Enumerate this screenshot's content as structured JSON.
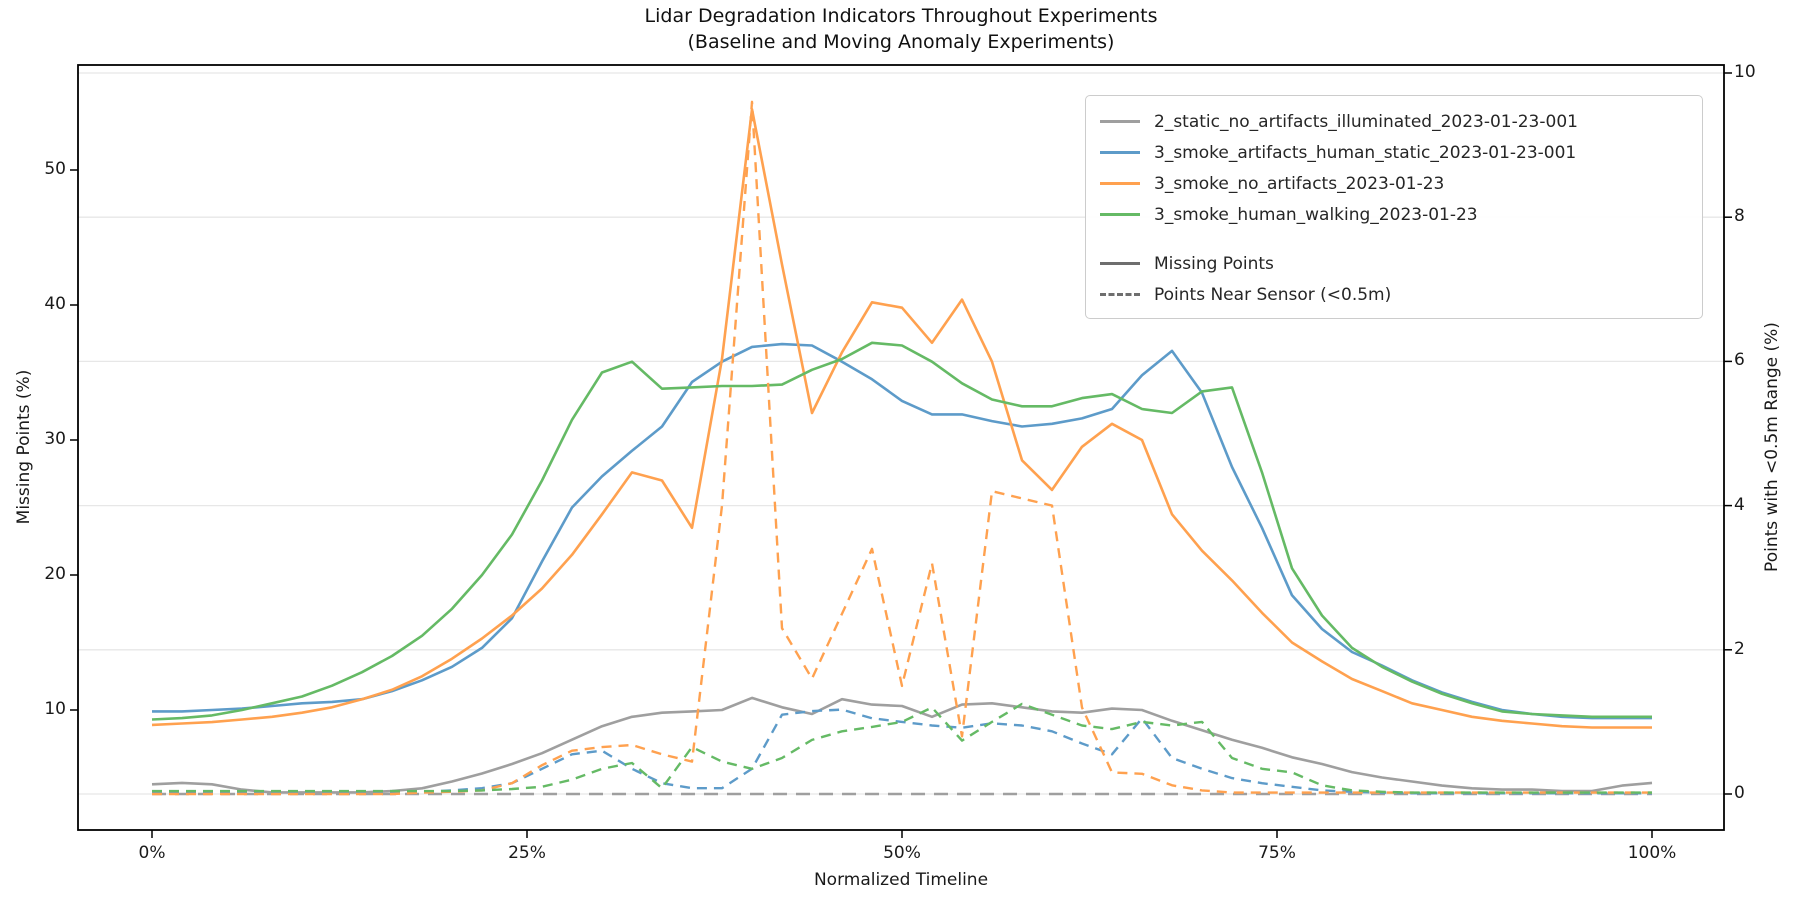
{
  "title": {
    "line1": "Lidar Degradation Indicators Throughout Experiments",
    "line2": "(Baseline and Moving Anomaly Experiments)"
  },
  "axes": {
    "x": {
      "label": "Normalized Timeline",
      "ticks": [
        "0%",
        "25%",
        "50%",
        "75%",
        "100%"
      ]
    },
    "y_left": {
      "label": "Missing Points (%)",
      "ticks": [
        "10",
        "20",
        "30",
        "40",
        "50"
      ]
    },
    "y_right": {
      "label": "Points with <0.5m Range (%)",
      "ticks": [
        "0",
        "2",
        "4",
        "6",
        "8",
        "10"
      ]
    }
  },
  "legend": {
    "experiments": [
      {
        "label": "2_static_no_artifacts_illuminated_2023-01-23-001",
        "color": "#9f9f9f"
      },
      {
        "label": "3_smoke_artifacts_human_static_2023-01-23-001",
        "color": "#5d9bc9"
      },
      {
        "label": "3_smoke_no_artifacts_2023-01-23",
        "color": "#ffa14f"
      },
      {
        "label": "3_smoke_human_walking_2023-01-23",
        "color": "#65ba65"
      }
    ],
    "styles": [
      {
        "label": "Missing Points",
        "dash": false,
        "color": "#6e6e6e"
      },
      {
        "label": "Points Near Sensor (<0.5m)",
        "dash": true,
        "color": "#6e6e6e"
      }
    ]
  },
  "colors": {
    "gray": "#9f9f9f",
    "blue": "#5d9bc9",
    "orange": "#ffa14f",
    "green": "#65ba65",
    "grid": "#e7e7e7",
    "spine": "#000000"
  },
  "chart_data": {
    "type": "line",
    "title": "Lidar Degradation Indicators Throughout Experiments (Baseline and Moving Anomaly Experiments)",
    "xlabel": "Normalized Timeline",
    "ylabel_left": "Missing Points (%)",
    "ylabel_right": "Points with <0.5m Range (%)",
    "x_tick_values": [
      0,
      25,
      50,
      75,
      100
    ],
    "left_tick_values": [
      10,
      20,
      30,
      40,
      50
    ],
    "right_tick_values": [
      0,
      2,
      4,
      6,
      8,
      10
    ],
    "ylim_left": [
      1.1,
      57.8
    ],
    "ylim_right": [
      -0.5,
      10.1
    ],
    "grid": "horizontal gridlines at right-axis ticks",
    "legend_position": "upper right",
    "x_percent": [
      0,
      2,
      4,
      6,
      8,
      10,
      12,
      14,
      16,
      18,
      20,
      22,
      24,
      26,
      28,
      30,
      32,
      34,
      36,
      38,
      40,
      42,
      44,
      46,
      48,
      50,
      52,
      54,
      56,
      58,
      60,
      62,
      64,
      66,
      68,
      70,
      72,
      74,
      76,
      78,
      80,
      82,
      84,
      86,
      88,
      90,
      92,
      94,
      96,
      98,
      100
    ],
    "series": [
      {
        "name": "2_static_no_artifacts_illuminated_2023-01-23-001",
        "metric": "Missing Points",
        "axis": "left",
        "style": "solid",
        "color": "#9f9f9f",
        "values": [
          4.5,
          4.6,
          4.5,
          4.1,
          3.9,
          3.9,
          3.9,
          3.9,
          4.0,
          4.2,
          4.7,
          5.3,
          6.0,
          6.8,
          7.8,
          8.8,
          9.5,
          9.8,
          9.9,
          10.0,
          10.9,
          10.2,
          9.7,
          10.8,
          10.4,
          10.3,
          9.5,
          10.4,
          10.5,
          10.2,
          9.9,
          9.8,
          10.1,
          10.0,
          9.2,
          8.5,
          7.8,
          7.2,
          6.5,
          6.0,
          5.4,
          5.0,
          4.7,
          4.4,
          4.2,
          4.1,
          4.1,
          4.0,
          4.0,
          4.4,
          4.6
        ]
      },
      {
        "name": "3_smoke_artifacts_human_static_2023-01-23-001",
        "metric": "Missing Points",
        "axis": "left",
        "style": "solid",
        "color": "#5d9bc9",
        "values": [
          9.9,
          9.9,
          10.0,
          10.1,
          10.3,
          10.5,
          10.6,
          10.8,
          11.4,
          12.2,
          13.2,
          14.6,
          16.8,
          21.0,
          25.0,
          27.3,
          29.2,
          31.0,
          34.3,
          35.8,
          36.9,
          37.1,
          37.0,
          35.8,
          34.5,
          32.9,
          31.9,
          31.9,
          31.4,
          31.0,
          31.2,
          31.6,
          32.3,
          34.8,
          36.6,
          33.5,
          28.0,
          23.5,
          18.5,
          16.0,
          14.3,
          13.3,
          12.2,
          11.3,
          10.6,
          10.0,
          9.7,
          9.5,
          9.4,
          9.4,
          9.4
        ]
      },
      {
        "name": "3_smoke_no_artifacts_2023-01-23",
        "metric": "Missing Points",
        "axis": "left",
        "style": "solid",
        "color": "#ffa14f",
        "values": [
          8.9,
          9.0,
          9.1,
          9.3,
          9.5,
          9.8,
          10.2,
          10.8,
          11.5,
          12.5,
          13.8,
          15.3,
          17.0,
          19.0,
          21.5,
          24.5,
          27.6,
          27.0,
          23.5,
          36.0,
          54.5,
          43.0,
          32.0,
          36.5,
          40.2,
          39.8,
          37.2,
          40.4,
          35.8,
          28.5,
          26.3,
          29.5,
          31.2,
          30.0,
          24.5,
          21.8,
          19.6,
          17.2,
          15.0,
          13.6,
          12.3,
          11.4,
          10.5,
          10.0,
          9.5,
          9.2,
          9.0,
          8.8,
          8.7,
          8.7,
          8.7
        ]
      },
      {
        "name": "3_smoke_human_walking_2023-01-23",
        "metric": "Missing Points",
        "axis": "left",
        "style": "solid",
        "color": "#65ba65",
        "values": [
          9.3,
          9.4,
          9.6,
          10.0,
          10.5,
          11.0,
          11.8,
          12.8,
          14.0,
          15.5,
          17.5,
          20.0,
          23.0,
          27.0,
          31.5,
          35.0,
          35.8,
          33.8,
          33.9,
          34.0,
          34.0,
          34.1,
          35.2,
          36.0,
          37.2,
          37.0,
          35.8,
          34.2,
          33.0,
          32.5,
          32.5,
          33.1,
          33.4,
          32.3,
          32.0,
          33.6,
          33.9,
          27.6,
          20.5,
          17.0,
          14.6,
          13.2,
          12.1,
          11.2,
          10.5,
          9.9,
          9.7,
          9.6,
          9.5,
          9.5,
          9.5
        ]
      },
      {
        "name": "2_static_no_artifacts_illuminated_2023-01-23-001",
        "metric": "Points Near Sensor (<0.5m)",
        "axis": "right",
        "style": "dashed",
        "color": "#9f9f9f",
        "dash_pattern": "14 9",
        "values": [
          0,
          0,
          0,
          0,
          0,
          0,
          0,
          0,
          0,
          0,
          0,
          0,
          0,
          0,
          0,
          0,
          0,
          0,
          0,
          0,
          0,
          0,
          0,
          0,
          0,
          0,
          0,
          0,
          0,
          0,
          0,
          0,
          0,
          0,
          0,
          0,
          0,
          0,
          0,
          0,
          0,
          0,
          0,
          0,
          0,
          0,
          0,
          0,
          0,
          0,
          0
        ]
      },
      {
        "name": "3_smoke_artifacts_human_static_2023-01-23-001",
        "metric": "Points Near Sensor (<0.5m)",
        "axis": "right",
        "style": "dashed",
        "color": "#5d9bc9",
        "values": [
          0.02,
          0.02,
          0.02,
          0.02,
          0.02,
          0.02,
          0.02,
          0.02,
          0.02,
          0.03,
          0.05,
          0.08,
          0.15,
          0.35,
          0.55,
          0.6,
          0.35,
          0.15,
          0.08,
          0.08,
          0.35,
          1.1,
          1.15,
          1.17,
          1.05,
          1.0,
          0.95,
          0.92,
          0.98,
          0.95,
          0.87,
          0.7,
          0.55,
          1.05,
          0.5,
          0.35,
          0.22,
          0.15,
          0.1,
          0.05,
          0.03,
          0.02,
          0.01,
          0.01,
          0.01,
          0.01,
          0.01,
          0.01,
          0.01,
          0.01,
          0.01
        ]
      },
      {
        "name": "3_smoke_no_artifacts_2023-01-23",
        "metric": "Points Near Sensor (<0.5m)",
        "axis": "right",
        "style": "dashed",
        "color": "#ffa14f",
        "values": [
          0,
          0,
          0,
          0,
          0,
          0,
          0,
          0,
          0,
          0.02,
          0.03,
          0.05,
          0.15,
          0.4,
          0.6,
          0.65,
          0.68,
          0.55,
          0.45,
          4.0,
          9.6,
          2.3,
          1.6,
          2.5,
          3.4,
          1.5,
          3.2,
          0.8,
          4.2,
          4.1,
          4.0,
          1.2,
          0.3,
          0.28,
          0.12,
          0.05,
          0.02,
          0.02,
          0.02,
          0.02,
          0.02,
          0.02,
          0.02,
          0.02,
          0.02,
          0.02,
          0.02,
          0.02,
          0.02,
          0.02,
          0.02
        ]
      },
      {
        "name": "3_smoke_human_walking_2023-01-23",
        "metric": "Points Near Sensor (<0.5m)",
        "axis": "right",
        "style": "dashed",
        "color": "#65ba65",
        "values": [
          0.04,
          0.04,
          0.04,
          0.04,
          0.04,
          0.04,
          0.04,
          0.04,
          0.04,
          0.04,
          0.04,
          0.05,
          0.07,
          0.1,
          0.2,
          0.35,
          0.43,
          0.08,
          0.65,
          0.45,
          0.35,
          0.5,
          0.75,
          0.87,
          0.93,
          1.0,
          1.2,
          0.74,
          1.0,
          1.25,
          1.1,
          0.95,
          0.9,
          1.0,
          0.95,
          1.0,
          0.5,
          0.35,
          0.3,
          0.12,
          0.05,
          0.03,
          0.02,
          0.02,
          0.02,
          0.02,
          0.02,
          0.02,
          0.02,
          0.02,
          0.02
        ]
      }
    ]
  }
}
